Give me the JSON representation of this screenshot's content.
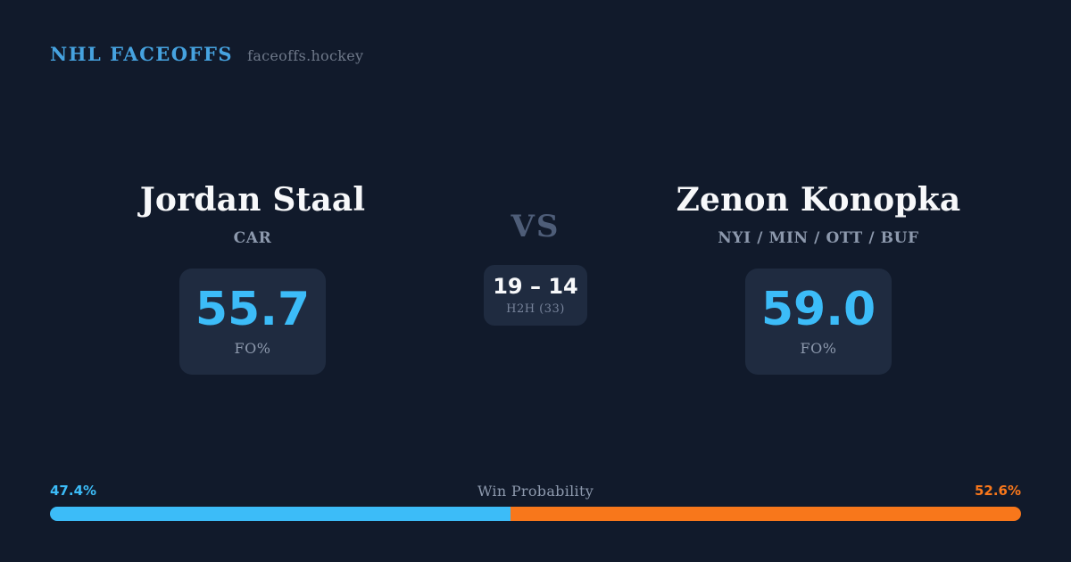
{
  "header": {
    "brand": "NHL FACEOFFS",
    "site": "faceoffs.hockey"
  },
  "players": {
    "left": {
      "name": "Jordan Staal",
      "teams": "CAR",
      "fo_value": "55.7",
      "fo_label": "FO%"
    },
    "right": {
      "name": "Zenon Konopka",
      "teams": "NYI / MIN / OTT / BUF",
      "fo_value": "59.0",
      "fo_label": "FO%"
    }
  },
  "matchup": {
    "vs_label": "VS",
    "h2h_score": "19 – 14",
    "h2h_label": "H2H (33)"
  },
  "win_probability": {
    "label": "Win Probability",
    "left_pct_text": "47.4%",
    "right_pct_text": "52.6%",
    "left_value": 47.4,
    "right_value": 52.6
  },
  "colors": {
    "background": "#111a2b",
    "card_bg": "#1f2b40",
    "accent_blue": "#3cbcf8",
    "brand_blue": "#46a3e0",
    "accent_orange": "#f8771b",
    "muted": "#8d99ad",
    "vs_color": "#4e5d78",
    "white": "#f7f8fa"
  }
}
